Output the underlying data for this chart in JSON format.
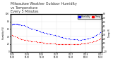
{
  "title": "Milwaukee Weather Outdoor Humidity\nvs Temperature\nEvery 5 Minutes",
  "title_fontsize": 3.5,
  "xlabel": "",
  "ylabel_humidity": "Humidity (%)",
  "ylabel_temp": "Temp (F)",
  "background_color": "#ffffff",
  "grid_color": "#dddddd",
  "blue_color": "#0000ff",
  "red_color": "#ff0000",
  "legend_blue_label": "Humidity",
  "legend_red_label": "Temp",
  "legend_box_color": "#0000ff",
  "legend_box_color2": "#ff0000",
  "ylim_humidity": [
    0,
    100
  ],
  "ylim_temp": [
    -10,
    80
  ],
  "marker_size": 0.8,
  "blue_x": [
    0,
    1,
    2,
    3,
    4,
    5,
    6,
    7,
    8,
    9,
    10,
    12,
    14,
    16,
    18,
    20,
    22,
    24,
    26,
    28,
    30,
    32,
    34,
    36,
    38,
    40,
    42,
    44,
    46,
    48,
    50,
    52,
    54,
    56,
    58,
    60,
    62,
    64,
    66,
    68,
    70,
    72,
    74,
    76,
    78,
    80,
    82,
    84,
    86,
    88,
    90,
    92,
    94,
    96,
    98,
    100,
    102,
    104,
    106,
    108,
    110,
    112,
    114,
    116,
    118,
    120
  ],
  "blue_y": [
    72,
    73,
    74,
    74,
    74,
    73,
    73,
    73,
    72,
    72,
    71,
    70,
    70,
    69,
    68,
    66,
    65,
    63,
    61,
    60,
    58,
    57,
    56,
    55,
    54,
    52,
    51,
    50,
    49,
    48,
    47,
    46,
    45,
    44,
    43,
    42,
    41,
    40,
    39,
    38,
    37,
    36,
    35,
    35,
    34,
    33,
    33,
    32,
    32,
    32,
    31,
    31,
    31,
    32,
    32,
    33,
    34,
    35,
    36,
    38,
    39,
    41,
    43,
    45,
    48,
    52
  ],
  "red_x": [
    0,
    2,
    4,
    6,
    8,
    10,
    12,
    14,
    16,
    18,
    20,
    22,
    24,
    26,
    28,
    30,
    32,
    34,
    36,
    38,
    40,
    42,
    44,
    46,
    48,
    50,
    52,
    54,
    56,
    58,
    60,
    62,
    64,
    66,
    68,
    70,
    72,
    74,
    76,
    78,
    80,
    82,
    84,
    86,
    88,
    90,
    92,
    94,
    96,
    98,
    100,
    102,
    104,
    106,
    108,
    110,
    112,
    114,
    116,
    118,
    120
  ],
  "red_y": [
    30,
    28,
    26,
    24,
    22,
    21,
    20,
    19,
    18,
    17,
    17,
    16,
    16,
    15,
    15,
    14,
    14,
    13,
    13,
    12,
    12,
    11,
    11,
    10,
    10,
    10,
    10,
    9,
    9,
    9,
    8,
    8,
    8,
    8,
    8,
    8,
    8,
    7,
    7,
    7,
    7,
    7,
    7,
    7,
    8,
    8,
    8,
    9,
    9,
    10,
    10,
    11,
    11,
    12,
    13,
    14,
    15,
    16,
    17,
    19,
    21
  ]
}
